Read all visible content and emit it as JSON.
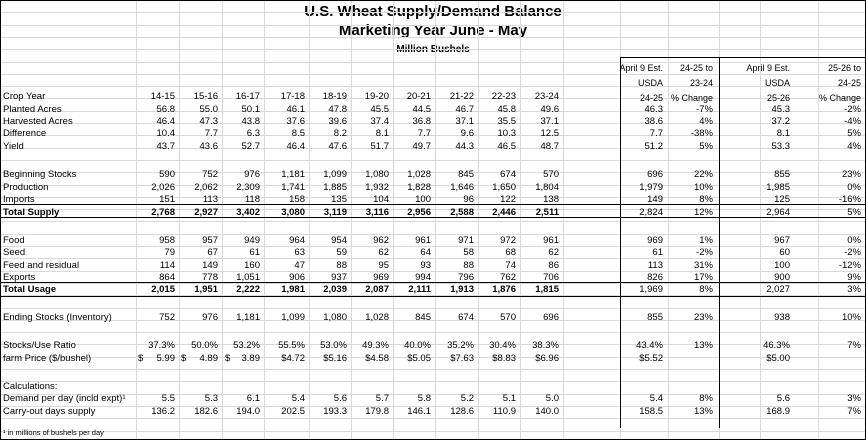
{
  "title": "U.S. Wheat Supply/Demand Balance",
  "subtitle": "Marketing Year  June - May",
  "units": "Million Bushels",
  "header": {
    "row_label": "Crop Year",
    "years": [
      "14-15",
      "15-16",
      "16-17",
      "17-18",
      "18-19",
      "19-20",
      "20-21",
      "21-22",
      "22-23",
      "23-24"
    ],
    "est1": [
      "April 9 Est.",
      "USDA",
      "24-25"
    ],
    "chg1": [
      "24-25 to",
      "23-24",
      "% Change"
    ],
    "est2": [
      "April 9 Est.",
      "USDA",
      "25-26"
    ],
    "chg2": [
      "25-26 to",
      "24-25",
      "% Change"
    ]
  },
  "rows": [
    {
      "label": "Planted Acres",
      "vals": [
        "56.8",
        "55.0",
        "50.1",
        "46.1",
        "47.8",
        "45.5",
        "44.5",
        "46.7",
        "45.8",
        "49.6"
      ],
      "e1": "46.3",
      "p1": "-7%",
      "e2": "45.3",
      "p2": "-2%"
    },
    {
      "label": "Harvested Acres",
      "vals": [
        "46.4",
        "47.3",
        "43.8",
        "37.6",
        "39.6",
        "37.4",
        "36.8",
        "37.1",
        "35.5",
        "37.1"
      ],
      "e1": "38.6",
      "p1": "4%",
      "e2": "37.2",
      "p2": "-4%"
    },
    {
      "label": "Difference",
      "vals": [
        "10.4",
        "7.7",
        "6.3",
        "8.5",
        "8.2",
        "8.1",
        "7.7",
        "9.6",
        "10.3",
        "12.5"
      ],
      "e1": "7.7",
      "p1": "-38%",
      "e2": "8.1",
      "p2": "5%"
    },
    {
      "label": "Yield",
      "vals": [
        "43.7",
        "43.6",
        "52.7",
        "46.4",
        "47.6",
        "51.7",
        "49.7",
        "44.3",
        "46.5",
        "48.7"
      ],
      "e1": "51.2",
      "p1": "5%",
      "e2": "53.3",
      "p2": "4%"
    },
    {
      "label": "Beginning Stocks",
      "vals": [
        "590",
        "752",
        "976",
        "1,181",
        "1,099",
        "1,080",
        "1,028",
        "845",
        "674",
        "570"
      ],
      "e1": "696",
      "p1": "22%",
      "e2": "855",
      "p2": "23%"
    },
    {
      "label": "Production",
      "vals": [
        "2,026",
        "2,062",
        "2,309",
        "1,741",
        "1,885",
        "1,932",
        "1,828",
        "1,646",
        "1,650",
        "1,804"
      ],
      "e1": "1,979",
      "p1": "10%",
      "e2": "1,985",
      "p2": "0%"
    },
    {
      "label": "Imports",
      "vals": [
        "151",
        "113",
        "118",
        "158",
        "135",
        "104",
        "100",
        "96",
        "122",
        "138"
      ],
      "e1": "149",
      "p1": "8%",
      "e2": "125",
      "p2": "-16%"
    },
    {
      "label": "Total Supply",
      "vals": [
        "2,768",
        "2,927",
        "3,402",
        "3,080",
        "3,119",
        "3,116",
        "2,956",
        "2,588",
        "2,446",
        "2,511"
      ],
      "e1": "2,824",
      "p1": "12%",
      "e2": "2,964",
      "p2": "5%"
    },
    {
      "label": "Food",
      "vals": [
        "958",
        "957",
        "949",
        "964",
        "954",
        "962",
        "961",
        "971",
        "972",
        "961"
      ],
      "e1": "969",
      "p1": "1%",
      "e2": "967",
      "p2": "0%"
    },
    {
      "label": "Seed",
      "vals": [
        "79",
        "67",
        "61",
        "63",
        "59",
        "62",
        "64",
        "58",
        "68",
        "62"
      ],
      "e1": "61",
      "p1": "-2%",
      "e2": "60",
      "p2": "-2%"
    },
    {
      "label": "Feed and residual",
      "vals": [
        "114",
        "149",
        "160",
        "47",
        "88",
        "95",
        "93",
        "88",
        "74",
        "86"
      ],
      "e1": "113",
      "p1": "31%",
      "e2": "100",
      "p2": "-12%"
    },
    {
      "label": "Exports",
      "vals": [
        "864",
        "778",
        "1,051",
        "906",
        "937",
        "969",
        "994",
        "796",
        "762",
        "706"
      ],
      "e1": "826",
      "p1": "17%",
      "e2": "900",
      "p2": "9%"
    },
    {
      "label": "Total Usage",
      "vals": [
        "2,015",
        "1,951",
        "2,222",
        "1,981",
        "2,039",
        "2,087",
        "2,111",
        "1,913",
        "1,876",
        "1,815"
      ],
      "e1": "1,969",
      "p1": "8%",
      "e2": "2,027",
      "p2": "3%"
    },
    {
      "label": "Ending Stocks (Inventory)",
      "vals": [
        "752",
        "976",
        "1,181",
        "1,099",
        "1,080",
        "1,028",
        "845",
        "674",
        "570",
        "696"
      ],
      "e1": "855",
      "p1": "23%",
      "e2": "938",
      "p2": "10%"
    },
    {
      "label": "Stocks/Use Ratio",
      "vals": [
        "37.3%",
        "50.0%",
        "53.2%",
        "55.5%",
        "53.0%",
        "49.3%",
        "40.0%",
        "35.2%",
        "30.4%",
        "38.3%"
      ],
      "e1": "43.4%",
      "p1": "13%",
      "e2": "46.3%",
      "p2": "7%"
    },
    {
      "label": "farm Price ($/bushel)",
      "vals": [
        "5.99",
        "4.89",
        "3.89",
        "$4.72",
        "$5.16",
        "$4.58",
        "$5.05",
        "$7.63",
        "$8.83",
        "$6.96"
      ],
      "e1": "$5.52",
      "p1": "",
      "e2": "$5.00",
      "p2": ""
    },
    {
      "label": "Calculations:",
      "vals": [
        "",
        "",
        "",
        "",
        "",
        "",
        "",
        "",
        "",
        ""
      ],
      "e1": "",
      "p1": "",
      "e2": "",
      "p2": ""
    },
    {
      "label": "Demand per day (incld expt)¹",
      "vals": [
        "5.5",
        "5.3",
        "6.1",
        "5.4",
        "5.6",
        "5.7",
        "5.8",
        "5.2",
        "5.1",
        "5.0"
      ],
      "e1": "5.4",
      "p1": "8%",
      "e2": "5.6",
      "p2": "3%"
    },
    {
      "label": "Carry-out days supply",
      "vals": [
        "136.2",
        "182.6",
        "194.0",
        "202.5",
        "193.3",
        "179.8",
        "146.1",
        "128.6",
        "110.9",
        "140.0"
      ],
      "e1": "158.5",
      "p1": "13%",
      "e2": "168.9",
      "p2": "7%"
    }
  ],
  "dollar_sign": "$",
  "footnote": "¹ in millions of bushels per day"
}
